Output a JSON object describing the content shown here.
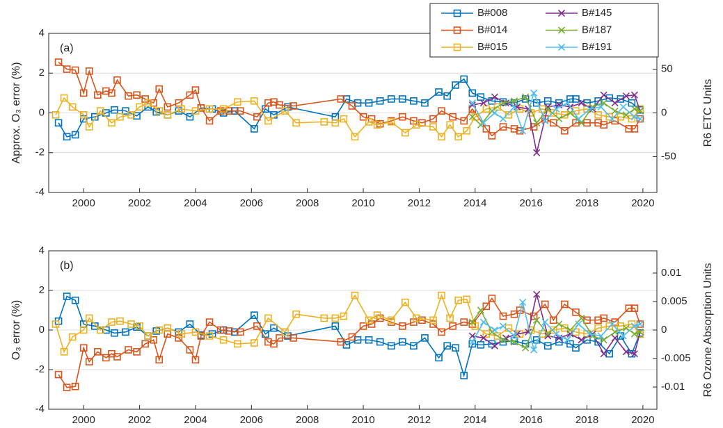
{
  "chart_data": [
    {
      "type": "line",
      "annotation": "(a)",
      "ylabel": "Approx. O₃ error (%)",
      "y2label": "R6 ETC Units",
      "xlim": [
        1998.75,
        2020.5
      ],
      "xticks": [
        2000,
        2002,
        2004,
        2006,
        2008,
        2010,
        2012,
        2014,
        2016,
        2018,
        2020
      ],
      "ylim": [
        -4,
        4
      ],
      "yticks": [
        -4,
        -2,
        0,
        2,
        4
      ],
      "y2lim": [
        -91,
        91
      ],
      "y2ticks": [
        -50,
        0,
        50
      ],
      "grid": true,
      "legend": "top-right",
      "series": [
        {
          "name": "B#008",
          "color": "#0072BD",
          "marker": "square",
          "x": [
            1999.1,
            1999.4,
            1999.7,
            2000.0,
            2000.4,
            2000.8,
            2001.1,
            2001.5,
            2001.9,
            2002.3,
            2002.6,
            2003.0,
            2003.4,
            2003.8,
            2004.2,
            2004.6,
            2005.0,
            2005.4,
            2006.1,
            2006.5,
            2006.8,
            2007.3,
            2009.0,
            2009.4,
            2009.8,
            2010.2,
            2010.6,
            2011.0,
            2011.4,
            2011.8,
            2012.2,
            2012.7,
            2013.0,
            2013.3,
            2013.6,
            2013.9,
            2014.2,
            2014.6,
            2015.0,
            2015.4,
            2015.8,
            2016.2,
            2016.6,
            2017.0,
            2017.4,
            2017.6,
            2018.0,
            2018.4,
            2018.8,
            2019.2,
            2019.6,
            2019.9
          ],
          "values": [
            -0.5,
            -1.2,
            -1.1,
            -0.3,
            -0.2,
            0,
            0.15,
            0.1,
            -0.15,
            0.3,
            0.05,
            -0.1,
            0.1,
            -0.2,
            0.25,
            0.2,
            0,
            0.1,
            -0.8,
            0.2,
            -0.1,
            0.3,
            -0.2,
            0.7,
            0.5,
            0.5,
            0.6,
            0.7,
            0.7,
            0.6,
            0.5,
            1.05,
            0.85,
            1.4,
            1.7,
            1.0,
            0.8,
            0.6,
            0.55,
            0.5,
            0.7,
            0.5,
            0.6,
            0.5,
            0.7,
            0.7,
            0.5,
            0.6,
            0.75,
            0.7,
            0.5,
            0.15
          ]
        },
        {
          "name": "B#014",
          "color": "#D95319",
          "marker": "square",
          "x": [
            1999.1,
            1999.4,
            1999.7,
            2000.0,
            2000.2,
            2000.5,
            2000.8,
            2001.0,
            2001.2,
            2001.6,
            2001.9,
            2002.2,
            2002.5,
            2002.7,
            2003.0,
            2003.4,
            2003.8,
            2004.0,
            2004.2,
            2004.5,
            2004.9,
            2005.2,
            2005.6,
            2006.2,
            2006.6,
            2006.8,
            2007.0,
            2007.5,
            2009.2,
            2009.6,
            2010.0,
            2010.3,
            2010.6,
            2011.0,
            2011.4,
            2011.8,
            2012.1,
            2012.5,
            2012.8,
            2013.2,
            2013.6,
            2013.9,
            2014.4,
            2014.6,
            2015.0,
            2015.4,
            2015.6,
            2016.1,
            2016.5,
            2016.8,
            2017.2,
            2017.6,
            2018.0,
            2018.4,
            2018.6,
            2019.0,
            2019.5,
            2019.7,
            2019.9
          ],
          "values": [
            2.55,
            2.2,
            2.15,
            1.0,
            2.1,
            0.9,
            1.1,
            1.0,
            1.65,
            0.85,
            0.9,
            0.7,
            0.5,
            1.2,
            0.3,
            0.5,
            0.9,
            1.15,
            0.25,
            -0.4,
            0.1,
            0.1,
            0.1,
            -0.2,
            0.5,
            0.55,
            0.4,
            0.35,
            0.7,
            0.35,
            -0.2,
            -0.3,
            -0.55,
            -0.4,
            -0.2,
            -0.4,
            -0.5,
            -0.3,
            0.1,
            -0.2,
            -0.4,
            0.2,
            -0.8,
            -1.15,
            -0.7,
            -0.8,
            -0.9,
            -0.7,
            -0.3,
            -0.5,
            -0.9,
            -0.5,
            -0.5,
            -0.5,
            -0.6,
            -0.4,
            -0.8,
            -0.8,
            -0.3
          ]
        },
        {
          "name": "B#015",
          "color": "#EDB120",
          "marker": "square",
          "x": [
            1999.0,
            1999.3,
            1999.6,
            2000.0,
            2000.2,
            2000.6,
            2001.0,
            2001.3,
            2001.7,
            2002.0,
            2002.3,
            2002.7,
            2003.0,
            2003.5,
            2004.0,
            2004.5,
            2005.0,
            2005.5,
            2006.1,
            2006.6,
            2007.2,
            2007.6,
            2008.6,
            2009.0,
            2009.3,
            2009.7,
            2010.2,
            2010.5,
            2011.0,
            2011.5,
            2011.9,
            2012.5,
            2012.8,
            2013.1,
            2013.4,
            2013.7,
            2014.0,
            2014.4,
            2014.8,
            2015.2,
            2015.6,
            2016.0,
            2016.4,
            2016.8,
            2017.2,
            2017.6,
            2018.0,
            2018.4,
            2018.8,
            2019.2,
            2019.6,
            2019.9
          ],
          "values": [
            -0.1,
            0.75,
            0.3,
            -0.1,
            -0.7,
            0.1,
            -0.5,
            -0.2,
            -0.1,
            0.3,
            0.5,
            0.1,
            -0.1,
            0.2,
            0.1,
            0.2,
            0.2,
            0.55,
            0.6,
            -0.4,
            0.1,
            -0.5,
            -0.45,
            -0.5,
            -0.3,
            -1.2,
            -0.45,
            -0.6,
            -0.45,
            -1.0,
            -0.6,
            -0.7,
            -1.2,
            -0.6,
            -1.2,
            -0.9,
            -0.2,
            0.2,
            0.3,
            -0.1,
            0.2,
            0,
            0.2,
            0,
            -0.1,
            0.1,
            0.2,
            -0.1,
            -0.2,
            -0.2,
            -0.3,
            0.2
          ]
        },
        {
          "name": "B#145",
          "color": "#7E2F8E",
          "marker": "cross",
          "x": [
            2013.9,
            2014.3,
            2014.7,
            2015.1,
            2015.5,
            2015.9,
            2016.2,
            2016.6,
            2017.0,
            2017.4,
            2017.8,
            2018.2,
            2018.6,
            2019.0,
            2019.4,
            2019.7,
            2019.9
          ],
          "values": [
            0.4,
            0.5,
            0.8,
            0.5,
            0.3,
            0.2,
            -2.0,
            0.3,
            0.4,
            0.3,
            0.5,
            0.2,
            0.9,
            0.5,
            0.85,
            0.9,
            0.1
          ]
        },
        {
          "name": "B#187",
          "color": "#77AC30",
          "marker": "cross",
          "x": [
            2013.9,
            2014.2,
            2014.6,
            2015.0,
            2015.4,
            2015.8,
            2016.2,
            2016.6,
            2017.0,
            2017.4,
            2017.8,
            2018.2,
            2018.6,
            2019.0,
            2019.4,
            2019.7,
            2019.9
          ],
          "values": [
            -0.2,
            -0.6,
            0.1,
            0.5,
            0.6,
            0.8,
            -0.5,
            0.2,
            -0.3,
            0,
            -0.5,
            0.3,
            0.5,
            0.1,
            -0.1,
            0.2,
            0.1
          ]
        },
        {
          "name": "B#191",
          "color": "#4DBEEE",
          "marker": "cross",
          "x": [
            2013.9,
            2014.3,
            2014.7,
            2015.0,
            2015.4,
            2015.7,
            2016.1,
            2016.5,
            2016.9,
            2017.3,
            2017.7,
            2018.1,
            2018.5,
            2018.9,
            2019.3,
            2019.7,
            2019.9
          ],
          "values": [
            0.5,
            -0.5,
            0,
            -0.3,
            0.3,
            -0.9,
            1.0,
            -0.4,
            0.2,
            0.5,
            -0.3,
            0.2,
            0.3,
            -0.3,
            0.3,
            -0.2,
            -0.3
          ]
        }
      ]
    },
    {
      "type": "line",
      "annotation": "(b)",
      "ylabel": "O₃ error (%)",
      "y2label": "R6 Ozone Absorption Units",
      "xlim": [
        1998.75,
        2020.5
      ],
      "xticks": [
        2000,
        2002,
        2004,
        2006,
        2008,
        2010,
        2012,
        2014,
        2016,
        2018,
        2020
      ],
      "ylim": [
        -4,
        4
      ],
      "yticks": [
        -4,
        -2,
        0,
        2,
        4
      ],
      "y2lim": [
        -0.0139,
        0.0139
      ],
      "y2ticks": [
        -0.01,
        -0.005,
        0,
        0.005,
        0.01
      ],
      "grid": true,
      "series": [
        {
          "color": "#0072BD",
          "marker": "square",
          "x": [
            1999.1,
            1999.4,
            1999.7,
            2000.0,
            2000.4,
            2000.8,
            2001.1,
            2001.5,
            2001.9,
            2002.3,
            2002.6,
            2003.0,
            2003.4,
            2003.8,
            2004.2,
            2004.6,
            2005.0,
            2005.4,
            2006.1,
            2006.5,
            2006.8,
            2007.3,
            2009.0,
            2009.4,
            2009.8,
            2010.2,
            2010.6,
            2011.0,
            2011.4,
            2011.8,
            2012.2,
            2012.7,
            2013.0,
            2013.3,
            2013.6,
            2013.9,
            2014.2,
            2014.6,
            2015.0,
            2015.4,
            2015.8,
            2016.2,
            2016.6,
            2017.0,
            2017.4,
            2017.6,
            2018.0,
            2018.4,
            2018.8,
            2019.2,
            2019.6,
            2019.9
          ],
          "values": [
            0.45,
            1.7,
            1.5,
            0.3,
            0.2,
            0,
            -0.15,
            -0.1,
            0.15,
            -0.3,
            -0.05,
            0.1,
            -0.1,
            0.3,
            -0.25,
            -0.2,
            0,
            -0.1,
            0.75,
            -0.2,
            0.1,
            -0.3,
            0.2,
            -0.75,
            -0.5,
            -0.5,
            -0.6,
            -0.8,
            -0.6,
            -0.8,
            -0.4,
            -1.4,
            -0.8,
            -0.9,
            -2.3,
            -0.7,
            -0.75,
            -0.7,
            -0.6,
            -0.55,
            -0.7,
            -0.5,
            -0.8,
            -0.6,
            -0.7,
            -0.9,
            -0.5,
            -0.6,
            -1.2,
            -0.3,
            -1.2,
            -0.15
          ]
        },
        {
          "color": "#D95319",
          "marker": "square",
          "x": [
            1999.1,
            1999.4,
            1999.7,
            2000.0,
            2000.2,
            2000.5,
            2000.8,
            2001.0,
            2001.2,
            2001.6,
            2001.9,
            2002.2,
            2002.5,
            2002.7,
            2003.0,
            2003.4,
            2003.8,
            2004.0,
            2004.2,
            2004.5,
            2004.9,
            2005.2,
            2005.6,
            2006.2,
            2006.6,
            2006.8,
            2007.0,
            2007.5,
            2009.2,
            2009.6,
            2010.0,
            2010.3,
            2010.6,
            2011.0,
            2011.4,
            2011.8,
            2012.1,
            2012.5,
            2012.8,
            2013.2,
            2013.6,
            2013.9,
            2014.4,
            2014.6,
            2015.0,
            2015.4,
            2015.6,
            2016.1,
            2016.5,
            2016.8,
            2017.2,
            2017.6,
            2018.0,
            2018.4,
            2018.6,
            2019.0,
            2019.5,
            2019.7,
            2019.9
          ],
          "values": [
            -2.25,
            -2.9,
            -2.85,
            -0.9,
            -1.6,
            -1.1,
            -1.4,
            -1.2,
            -1.35,
            -1.0,
            -1.1,
            -0.7,
            -0.5,
            -1.5,
            -0.2,
            -0.4,
            -1.0,
            -1.5,
            -0.3,
            0.4,
            0,
            -0.05,
            -0.1,
            0.2,
            -0.6,
            -0.7,
            -0.4,
            -0.4,
            -0.6,
            -0.35,
            0.2,
            0.3,
            0.6,
            0.4,
            0.2,
            0.4,
            0.5,
            0.3,
            -0.1,
            0.2,
            0.4,
            0.3,
            1.2,
            1.6,
            0.7,
            0.8,
            1.0,
            0.7,
            1.3,
            0.5,
            1.3,
            0.9,
            0.5,
            0.5,
            0.6,
            0.4,
            1.1,
            1.1,
            0.3
          ]
        },
        {
          "color": "#EDB120",
          "marker": "square",
          "x": [
            1999.0,
            1999.3,
            1999.6,
            2000.0,
            2000.2,
            2000.6,
            2001.0,
            2001.3,
            2001.7,
            2002.0,
            2002.3,
            2002.7,
            2003.0,
            2003.5,
            2004.0,
            2004.5,
            2005.0,
            2005.5,
            2006.1,
            2006.6,
            2007.2,
            2007.6,
            2008.6,
            2009.0,
            2009.3,
            2009.7,
            2010.2,
            2010.5,
            2011.0,
            2011.5,
            2011.9,
            2012.5,
            2012.8,
            2013.1,
            2013.4,
            2013.7,
            2014.0,
            2014.4,
            2014.8,
            2015.2,
            2015.6,
            2016.0,
            2016.4,
            2016.8,
            2017.2,
            2017.6,
            2018.0,
            2018.4,
            2018.8,
            2019.2,
            2019.6,
            2019.9
          ],
          "values": [
            0.3,
            -1.1,
            -0.35,
            0,
            0.6,
            0,
            0.4,
            0.45,
            0.3,
            0.2,
            -0.3,
            0,
            0.1,
            -0.2,
            -0.1,
            -0.3,
            -0.5,
            -0.7,
            -0.65,
            0.6,
            -0.1,
            0.8,
            0.6,
            0.6,
            0.7,
            1.75,
            0.5,
            0.75,
            0.5,
            1.4,
            0.6,
            0.5,
            1.75,
            0.6,
            1.5,
            1.55,
            0.2,
            -0.2,
            -0.3,
            0.1,
            -0.2,
            0,
            -0.2,
            0,
            0.1,
            -0.1,
            -0.2,
            0.1,
            0.2,
            0.2,
            0.3,
            -0.2
          ]
        },
        {
          "color": "#7E2F8E",
          "marker": "cross",
          "x": [
            2013.9,
            2014.3,
            2014.7,
            2015.1,
            2015.5,
            2015.9,
            2016.2,
            2016.6,
            2017.0,
            2017.4,
            2017.8,
            2018.2,
            2018.6,
            2019.0,
            2019.4,
            2019.7,
            2019.9
          ],
          "values": [
            -0.3,
            -0.4,
            -0.8,
            -0.4,
            -0.2,
            -0.1,
            1.8,
            -0.3,
            -0.4,
            -0.2,
            -0.5,
            -0.2,
            -1.2,
            -0.4,
            -1.1,
            -1.2,
            -0.1
          ]
        },
        {
          "color": "#77AC30",
          "marker": "cross",
          "x": [
            2013.9,
            2014.2,
            2014.6,
            2015.0,
            2015.4,
            2015.8,
            2016.2,
            2016.6,
            2017.0,
            2017.4,
            2017.8,
            2018.2,
            2018.6,
            2019.0,
            2019.4,
            2019.7,
            2019.9
          ],
          "values": [
            0.4,
            1.0,
            -0.1,
            -0.5,
            -0.6,
            -0.9,
            0.5,
            -0.2,
            0.3,
            0,
            0.6,
            -0.3,
            -0.5,
            -0.1,
            0.1,
            -0.2,
            -0.1
          ]
        },
        {
          "color": "#4DBEEE",
          "marker": "cross",
          "x": [
            2013.9,
            2014.3,
            2014.7,
            2015.0,
            2015.4,
            2015.7,
            2016.1,
            2016.5,
            2016.9,
            2017.3,
            2017.7,
            2018.1,
            2018.5,
            2018.9,
            2019.3,
            2019.7,
            2019.9
          ],
          "values": [
            -0.6,
            0.4,
            0,
            0.2,
            -0.3,
            1.4,
            -1.0,
            0.4,
            -0.2,
            -0.5,
            0.3,
            -0.2,
            -0.3,
            0.3,
            -0.3,
            0.2,
            0.3
          ]
        }
      ]
    }
  ]
}
